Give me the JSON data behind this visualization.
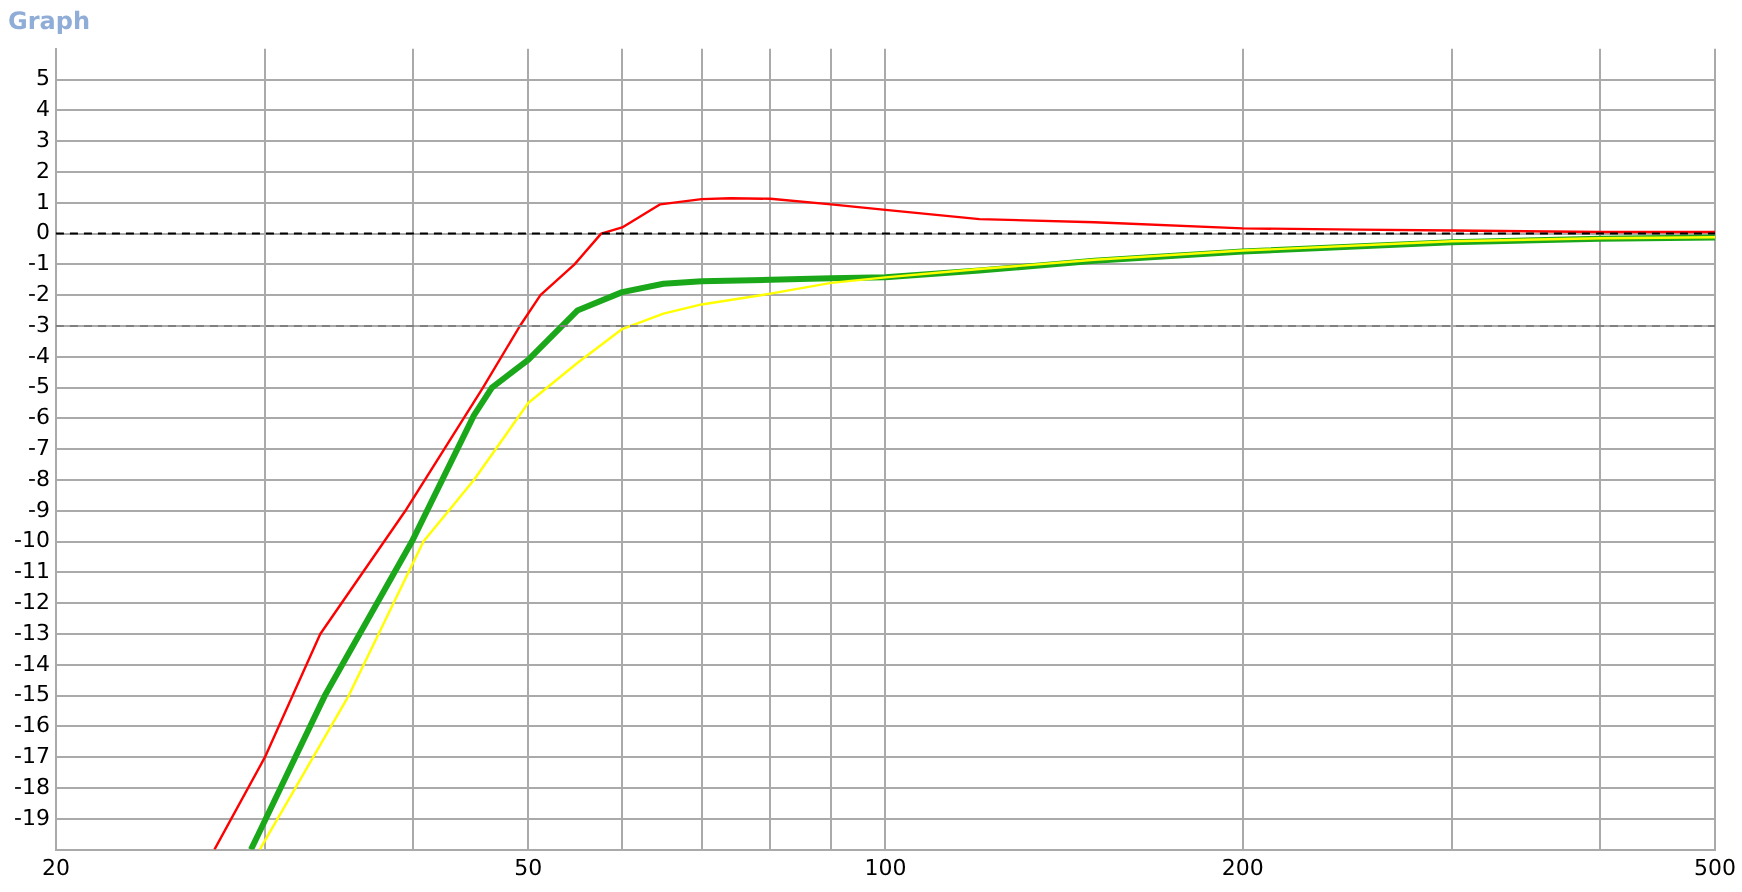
{
  "chart_data": {
    "type": "line",
    "title": "Graph",
    "log": "x",
    "grid": true,
    "marker": "none",
    "line_style": "solid",
    "xlim": [
      20,
      500
    ],
    "ylim": [
      -20,
      6
    ],
    "xticks": [
      20,
      {
        "value": 30,
        "label": null
      },
      {
        "value": 40,
        "label": null
      },
      50,
      {
        "value": 60,
        "label": null
      },
      {
        "value": 70,
        "label": null
      },
      {
        "value": 80,
        "label": null
      },
      {
        "value": 90,
        "label": null
      },
      100,
      200,
      {
        "value": 300,
        "label": null
      },
      {
        "value": 400,
        "label": null
      },
      500
    ],
    "yticks": [
      -19,
      -18,
      -17,
      -16,
      -15,
      -14,
      -13,
      -12,
      -11,
      -10,
      -9,
      -8,
      -7,
      -6,
      -5,
      -4,
      -3,
      -2,
      -1,
      0,
      1,
      2,
      3,
      4,
      5
    ],
    "ref_lines": [
      {
        "axis": "y",
        "value": 0,
        "color": "#000000",
        "line_style": "dashed"
      },
      {
        "axis": "y",
        "value": -3,
        "color": "#808080",
        "line_style": "dashed"
      }
    ],
    "series": [
      {
        "color": "#ff0000",
        "x": [
          27.2,
          30,
          33.4,
          39.4,
          45.8,
          49.2,
          51.2,
          54.7,
          57.6,
          60,
          64.6,
          70,
          74,
          80,
          90,
          100,
          120,
          150,
          200,
          250,
          300,
          400,
          500
        ],
        "values": [
          -20,
          -17,
          -13,
          -9,
          -5,
          -3,
          -2,
          -1,
          0,
          0.2,
          0.95,
          1.12,
          1.15,
          1.13,
          0.95,
          0.77,
          0.47,
          0.37,
          0.17,
          0.13,
          0.1,
          0.05,
          0.05
        ]
      },
      {
        "color": "#ffff00",
        "x": [
          29.7,
          35.3,
          40.8,
          45,
          50,
          55,
          60,
          65,
          70,
          80,
          90,
          100,
          120,
          150,
          200,
          300,
          400,
          500
        ],
        "values": [
          -20,
          -15,
          -10,
          -8,
          -5.5,
          -4.2,
          -3.1,
          -2.6,
          -2.3,
          -1.95,
          -1.6,
          -1.42,
          -1.15,
          -0.85,
          -0.55,
          -0.25,
          -0.15,
          -0.12
        ]
      },
      {
        "color": "#1aa81a",
        "x": [
          29.2,
          33.7,
          39.9,
          45,
          46.6,
          50,
          55,
          60,
          65,
          70,
          80,
          90,
          100,
          120,
          150,
          200,
          300,
          400,
          500
        ],
        "values": [
          -20,
          -15,
          -10,
          -5.9,
          -5,
          -4.1,
          -2.5,
          -1.9,
          -1.63,
          -1.55,
          -1.5,
          -1.45,
          -1.42,
          -1.2,
          -0.88,
          -0.58,
          -0.28,
          -0.17,
          -0.13
        ]
      }
    ]
  }
}
